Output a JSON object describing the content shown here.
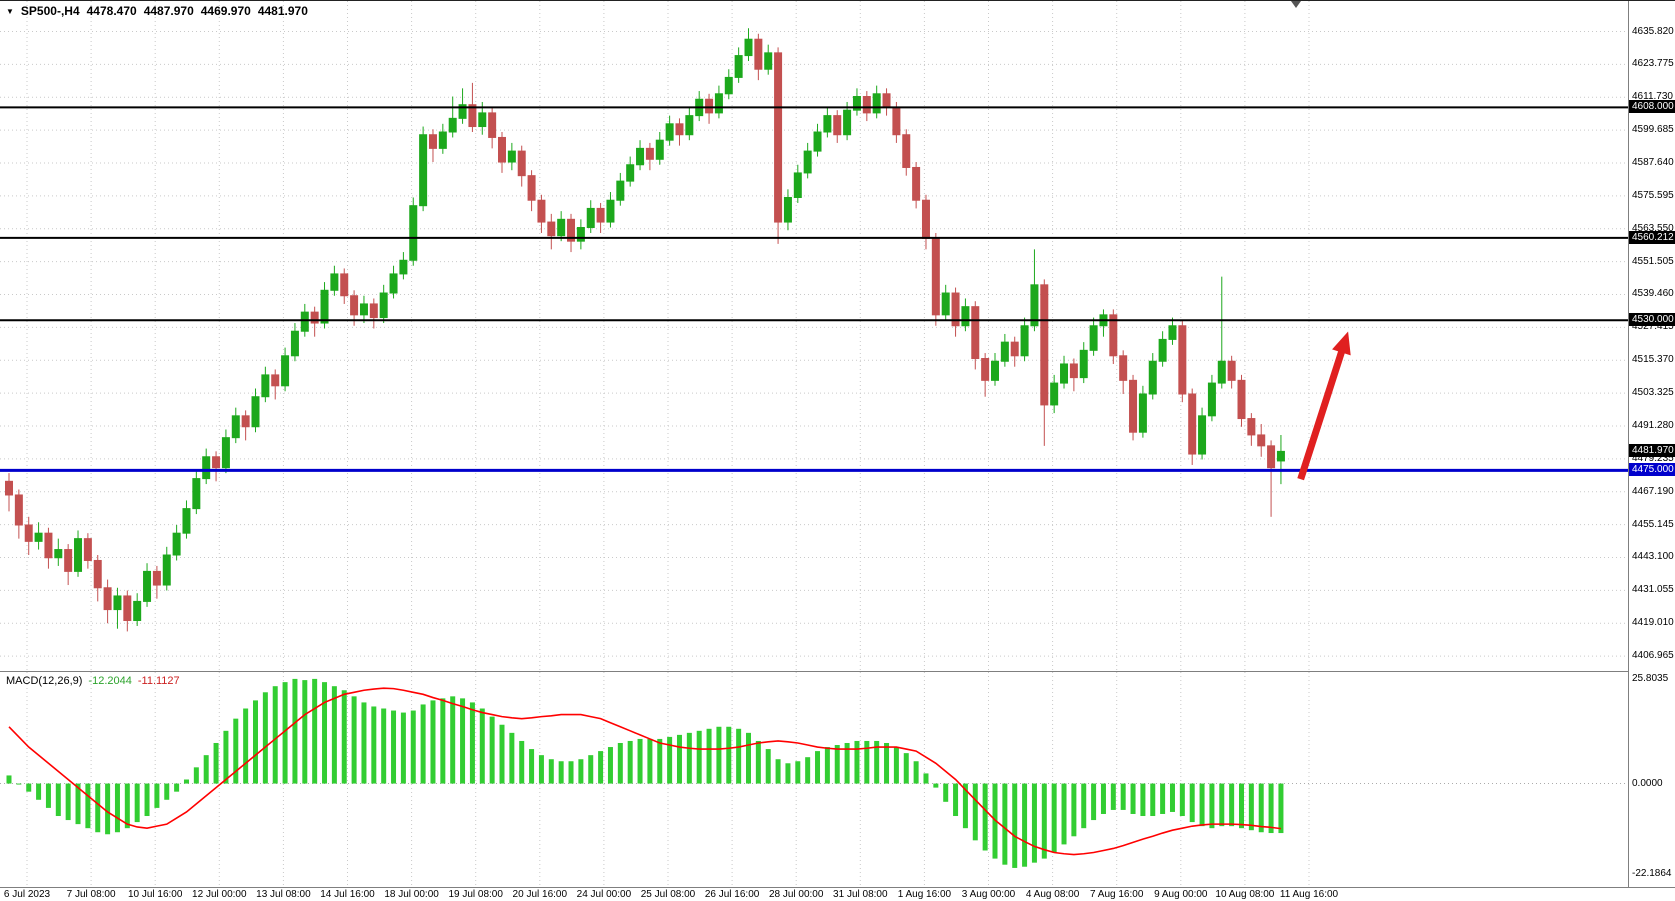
{
  "header": {
    "symbol_period": "SP500-,H4",
    "open": "4478.470",
    "high": "4487.970",
    "low": "4469.970",
    "close": "4481.970"
  },
  "colors": {
    "background": "#FFFFFF",
    "grid": "#C9C9C9",
    "bull": "#1CA81C",
    "bear": "#C35050",
    "histogram": "#32CD32",
    "signal": "#FF0000",
    "level_black": "#000000",
    "level_blue": "#0000CC",
    "arrow": "#E02020"
  },
  "chart_data": {
    "type": "candlestick",
    "title": "SP500-,H4",
    "ylim": [
      4401.5,
      4647.0
    ],
    "grid": true,
    "price_ticks": [
      4635.82,
      4623.775,
      4611.73,
      4599.685,
      4587.64,
      4575.595,
      4563.55,
      4551.505,
      4539.46,
      4527.415,
      4515.37,
      4503.325,
      4491.28,
      4479.235,
      4467.19,
      4455.145,
      4443.1,
      4431.055,
      4419.01,
      4406.965
    ],
    "time_labels": [
      "6 Jul 2023",
      "7 Jul 08:00",
      "10 Jul 16:00",
      "12 Jul 00:00",
      "13 Jul 08:00",
      "14 Jul 16:00",
      "18 Jul 00:00",
      "19 Jul 08:00",
      "20 Jul 16:00",
      "24 Jul 00:00",
      "25 Jul 08:00",
      "26 Jul 16:00",
      "28 Jul 00:00",
      "31 Jul 08:00",
      "1 Aug 16:00",
      "3 Aug 00:00",
      "4 Aug 08:00",
      "7 Aug 16:00",
      "9 Aug 00:00",
      "10 Aug 08:00",
      "11 Aug 16:00"
    ],
    "levels": [
      {
        "price": 4608.0,
        "label": "4608.000",
        "color": "#000000",
        "line": true,
        "width": 2
      },
      {
        "price": 4560.212,
        "label": "4560.212",
        "color": "#000000",
        "line": true,
        "width": 2
      },
      {
        "price": 4530.0,
        "label": "4530.000",
        "color": "#000000",
        "line": true,
        "width": 2
      },
      {
        "price": 4481.97,
        "label": "4481.970",
        "color": "#000000",
        "line": false,
        "width": 0
      },
      {
        "price": 4475.0,
        "label": "4475.000",
        "color": "#0000CC",
        "line": true,
        "width": 3
      }
    ],
    "candles": [
      [
        4471,
        4474,
        4460,
        4466
      ],
      [
        4466,
        4468,
        4450,
        4455
      ],
      [
        4455,
        4458,
        4444,
        4449
      ],
      [
        4449,
        4456,
        4446,
        4452
      ],
      [
        4452,
        4454,
        4439,
        4443
      ],
      [
        4443,
        4450,
        4440,
        4446
      ],
      [
        4446,
        4448,
        4433,
        4438
      ],
      [
        4438,
        4453,
        4436,
        4450
      ],
      [
        4450,
        4452,
        4439,
        4442
      ],
      [
        4442,
        4444,
        4427,
        4432
      ],
      [
        4432,
        4435,
        4419,
        4424
      ],
      [
        4424,
        4432,
        4417,
        4429
      ],
      [
        4429,
        4431,
        4416,
        4420
      ],
      [
        4420,
        4430,
        4418,
        4427
      ],
      [
        4427,
        4441,
        4425,
        4438
      ],
      [
        4438,
        4440,
        4428,
        4433
      ],
      [
        4433,
        4447,
        4431,
        4444
      ],
      [
        4444,
        4455,
        4442,
        4452
      ],
      [
        4452,
        4464,
        4450,
        4461
      ],
      [
        4461,
        4475,
        4459,
        4472
      ],
      [
        4472,
        4483,
        4470,
        4480
      ],
      [
        4480,
        4482,
        4471,
        4476
      ],
      [
        4476,
        4490,
        4474,
        4487
      ],
      [
        4487,
        4498,
        4485,
        4495
      ],
      [
        4495,
        4497,
        4486,
        4491
      ],
      [
        4491,
        4505,
        4489,
        4502
      ],
      [
        4502,
        4513,
        4500,
        4510
      ],
      [
        4510,
        4512,
        4501,
        4506
      ],
      [
        4506,
        4520,
        4504,
        4517
      ],
      [
        4517,
        4529,
        4515,
        4526
      ],
      [
        4526,
        4536,
        4524,
        4533
      ],
      [
        4533,
        4535,
        4524,
        4529
      ],
      [
        4529,
        4544,
        4527,
        4541
      ],
      [
        4541,
        4550,
        4539,
        4547
      ],
      [
        4547,
        4549,
        4536,
        4539
      ],
      [
        4539,
        4541,
        4528,
        4532
      ],
      [
        4532,
        4539,
        4529,
        4536
      ],
      [
        4536,
        4538,
        4527,
        4531
      ],
      [
        4531,
        4543,
        4529,
        4540
      ],
      [
        4540,
        4550,
        4538,
        4547
      ],
      [
        4547,
        4555,
        4545,
        4552
      ],
      [
        4552,
        4575,
        4550,
        4572
      ],
      [
        4572,
        4601,
        4570,
        4598
      ],
      [
        4598,
        4600,
        4588,
        4593
      ],
      [
        4593,
        4602,
        4591,
        4599
      ],
      [
        4599,
        4612,
        4597,
        4604
      ],
      [
        4604,
        4615,
        4602,
        4609
      ],
      [
        4609,
        4617,
        4599,
        4601
      ],
      [
        4601,
        4610,
        4598,
        4606
      ],
      [
        4606,
        4608,
        4593,
        4597
      ],
      [
        4597,
        4599,
        4584,
        4588
      ],
      [
        4588,
        4595,
        4585,
        4592
      ],
      [
        4592,
        4594,
        4579,
        4583
      ],
      [
        4583,
        4585,
        4570,
        4574
      ],
      [
        4574,
        4576,
        4562,
        4566
      ],
      [
        4566,
        4569,
        4556,
        4561
      ],
      [
        4561,
        4570,
        4559,
        4567
      ],
      [
        4567,
        4569,
        4555,
        4559
      ],
      [
        4559,
        4567,
        4556,
        4564
      ],
      [
        4564,
        4574,
        4562,
        4571
      ],
      [
        4571,
        4573,
        4562,
        4566
      ],
      [
        4566,
        4577,
        4564,
        4574
      ],
      [
        4574,
        4584,
        4572,
        4581
      ],
      [
        4581,
        4590,
        4579,
        4587
      ],
      [
        4587,
        4596,
        4585,
        4593
      ],
      [
        4593,
        4595,
        4585,
        4589
      ],
      [
        4589,
        4599,
        4587,
        4596
      ],
      [
        4596,
        4605,
        4594,
        4602
      ],
      [
        4602,
        4604,
        4594,
        4598
      ],
      [
        4598,
        4608,
        4596,
        4605
      ],
      [
        4605,
        4614,
        4603,
        4611
      ],
      [
        4611,
        4613,
        4602,
        4606
      ],
      [
        4606,
        4616,
        4604,
        4613
      ],
      [
        4613,
        4622,
        4611,
        4619
      ],
      [
        4619,
        4630,
        4617,
        4627
      ],
      [
        4627,
        4637,
        4625,
        4633
      ],
      [
        4633,
        4635,
        4618,
        4622
      ],
      [
        4622,
        4631,
        4620,
        4628
      ],
      [
        4628,
        4630,
        4558,
        4566
      ],
      [
        4566,
        4578,
        4563,
        4575
      ],
      [
        4575,
        4587,
        4573,
        4584
      ],
      [
        4584,
        4595,
        4582,
        4592
      ],
      [
        4592,
        4602,
        4590,
        4599
      ],
      [
        4599,
        4608,
        4597,
        4605
      ],
      [
        4605,
        4607,
        4595,
        4598
      ],
      [
        4598,
        4610,
        4596,
        4607
      ],
      [
        4607,
        4615,
        4605,
        4612
      ],
      [
        4612,
        4614,
        4603,
        4606
      ],
      [
        4606,
        4616,
        4604,
        4613
      ],
      [
        4613,
        4615,
        4605,
        4608
      ],
      [
        4608,
        4610,
        4595,
        4598
      ],
      [
        4598,
        4600,
        4583,
        4586
      ],
      [
        4586,
        4588,
        4571,
        4574
      ],
      [
        4574,
        4576,
        4556,
        4560
      ],
      [
        4560,
        4562,
        4528,
        4532
      ],
      [
        4532,
        4543,
        4530,
        4540
      ],
      [
        4540,
        4542,
        4524,
        4528
      ],
      [
        4528,
        4538,
        4526,
        4535
      ],
      [
        4535,
        4537,
        4512,
        4516
      ],
      [
        4516,
        4518,
        4502,
        4508
      ],
      [
        4508,
        4518,
        4506,
        4515
      ],
      [
        4515,
        4525,
        4513,
        4522
      ],
      [
        4522,
        4524,
        4513,
        4517
      ],
      [
        4517,
        4531,
        4515,
        4528
      ],
      [
        4528,
        4556,
        4526,
        4543
      ],
      [
        4543,
        4545,
        4484,
        4499
      ],
      [
        4499,
        4510,
        4496,
        4507
      ],
      [
        4507,
        4517,
        4505,
        4514
      ],
      [
        4514,
        4516,
        4504,
        4509
      ],
      [
        4509,
        4522,
        4507,
        4519
      ],
      [
        4519,
        4531,
        4517,
        4528
      ],
      [
        4528,
        4534,
        4524,
        4532
      ],
      [
        4532,
        4534,
        4514,
        4517
      ],
      [
        4517,
        4519,
        4503,
        4508
      ],
      [
        4508,
        4510,
        4486,
        4489
      ],
      [
        4489,
        4506,
        4487,
        4503
      ],
      [
        4503,
        4518,
        4501,
        4515
      ],
      [
        4515,
        4526,
        4513,
        4523
      ],
      [
        4523,
        4531,
        4521,
        4528
      ],
      [
        4528,
        4530,
        4500,
        4503
      ],
      [
        4503,
        4505,
        4477,
        4481
      ],
      [
        4481,
        4498,
        4479,
        4495
      ],
      [
        4495,
        4510,
        4493,
        4507
      ],
      [
        4507,
        4546,
        4505,
        4515
      ],
      [
        4515,
        4517,
        4505,
        4508
      ],
      [
        4508,
        4510,
        4491,
        4494
      ],
      [
        4494,
        4496,
        4484,
        4488
      ],
      [
        4488,
        4492,
        4480,
        4484
      ],
      [
        4484,
        4486,
        4458,
        4476
      ],
      [
        4478.47,
        4487.97,
        4469.97,
        4481.97
      ]
    ],
    "annotation_arrow": {
      "from": {
        "bar": 131,
        "price": 4471.8
      },
      "to": {
        "bar": 135.5,
        "price": 4522.4
      },
      "color": "#E02020"
    },
    "macd": {
      "label": "MACD(12,26,9)",
      "macd_value": "-12.2044",
      "signal_value": "-11.1127",
      "ylim": [
        -25.5,
        27.5
      ],
      "axis_ticks": [
        {
          "v": 25.8035,
          "label": "25.8035"
        },
        {
          "v": 0,
          "label": "0.0000"
        },
        {
          "v": -22.1864,
          "label": "-22.1864"
        }
      ],
      "histogram": [
        2,
        0,
        -2,
        -4,
        -6,
        -8,
        -9,
        -10,
        -11,
        -12,
        -12.5,
        -12,
        -11,
        -9.5,
        -8,
        -6,
        -4,
        -2,
        1,
        4,
        7,
        10,
        13,
        16,
        18.5,
        20.5,
        22.5,
        24,
        25,
        25.8,
        25.5,
        25.8,
        25,
        24,
        23,
        21.5,
        20,
        19,
        18.5,
        18,
        17.5,
        18,
        19.5,
        20.5,
        21,
        21.5,
        21,
        20,
        18.5,
        16.5,
        14.5,
        12.5,
        10.5,
        8.5,
        7,
        6,
        5.5,
        5.5,
        6,
        7,
        8,
        9,
        10,
        10.5,
        11,
        11,
        11,
        11.5,
        12,
        12.5,
        13,
        13.5,
        14,
        14,
        13.5,
        12.5,
        10.5,
        8.5,
        6,
        5,
        5.5,
        6.5,
        8,
        9,
        9.5,
        10,
        10.5,
        10.5,
        10.5,
        10,
        9,
        7.5,
        5.5,
        2.5,
        -1,
        -4.5,
        -8,
        -11,
        -14,
        -16.5,
        -18.5,
        -20,
        -20.8,
        -20.5,
        -19.5,
        -18.5,
        -17,
        -15,
        -13,
        -11,
        -9,
        -7.5,
        -6.5,
        -6.5,
        -7.5,
        -8,
        -8,
        -7.5,
        -7,
        -8,
        -9.5,
        -10.5,
        -11,
        -10.5,
        -10.5,
        -11,
        -11.5,
        -12,
        -12.2,
        -12.2044
      ],
      "signal": [
        14,
        11.5,
        9,
        7,
        5,
        3,
        1,
        -1,
        -3,
        -5,
        -7,
        -8.5,
        -10,
        -10.7,
        -11,
        -10.5,
        -10,
        -8.5,
        -7,
        -5,
        -3,
        -1,
        1,
        3,
        5,
        7,
        9,
        11,
        13,
        15,
        17,
        18.5,
        20,
        21,
        22,
        22.5,
        23,
        23.3,
        23.5,
        23.4,
        23,
        22.5,
        22,
        21.2,
        20.5,
        19.7,
        19,
        18.2,
        17.5,
        17,
        16.5,
        16.2,
        16,
        16.2,
        16.5,
        16.7,
        17,
        17,
        17,
        16.5,
        16,
        15,
        14,
        13,
        12,
        11,
        10,
        9.5,
        9,
        8.7,
        8.5,
        8.5,
        8.5,
        8.7,
        9,
        9.5,
        10,
        10.3,
        10.5,
        10.3,
        10,
        9.5,
        9,
        8.7,
        8.5,
        8.5,
        8.5,
        8.7,
        9,
        9,
        9,
        8.5,
        8,
        6.5,
        5,
        3,
        1,
        -1.5,
        -4,
        -6.5,
        -9,
        -11,
        -13,
        -14.3,
        -15.5,
        -16.3,
        -17,
        -17.3,
        -17.5,
        -17.3,
        -17,
        -16.5,
        -16,
        -15.3,
        -14.5,
        -13.7,
        -13,
        -12.2,
        -11.5,
        -11,
        -10.5,
        -10.2,
        -10,
        -10,
        -10,
        -10.1,
        -10.3,
        -10.6,
        -10.8,
        -11.1127
      ]
    }
  }
}
